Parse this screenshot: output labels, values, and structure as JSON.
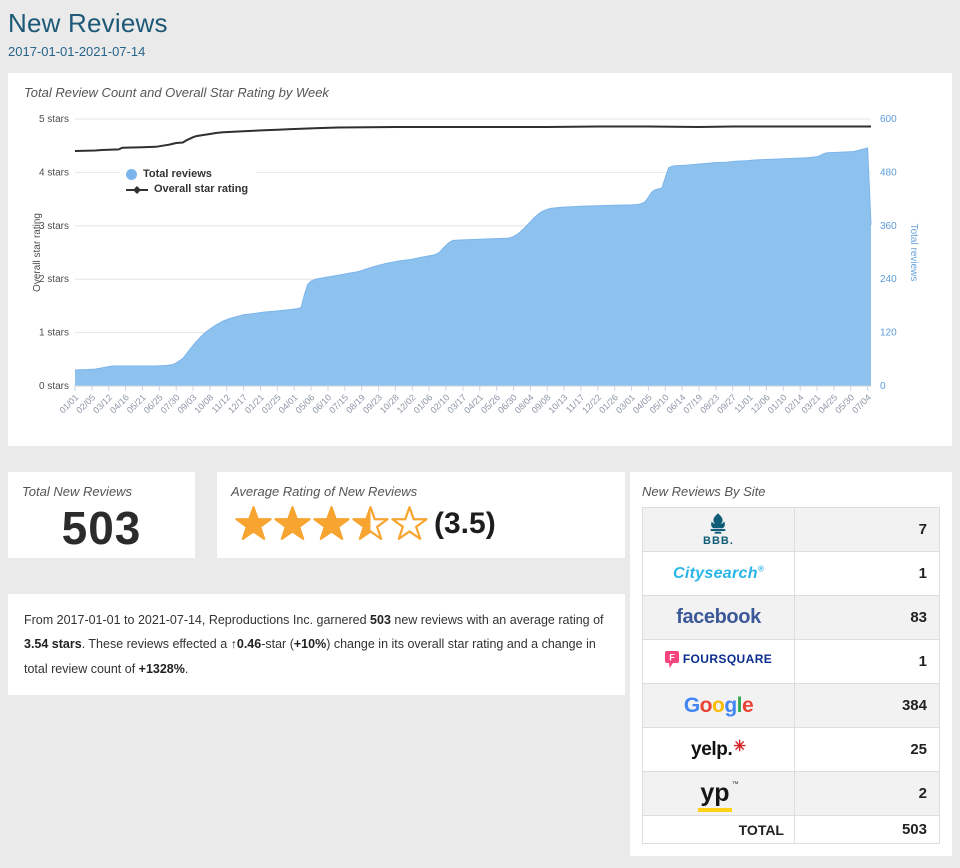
{
  "page": {
    "title": "New Reviews",
    "date_range": "2017-01-01-2021-07-14"
  },
  "chart": {
    "title": "Total Review Count and Overall Star Rating by Week",
    "legend": [
      {
        "label": "Total reviews",
        "marker": "circle",
        "color": "#7cb5ec"
      },
      {
        "label": "Overall star rating",
        "marker": "line-diamond",
        "color": "#333333"
      }
    ]
  },
  "chart_data": {
    "type": "area+line combo",
    "title": "Total Review Count and Overall Star Rating by Week",
    "x_axis": {
      "unit": "week",
      "weeks_total": 236,
      "tick_labels": [
        "01/01",
        "02/05",
        "03/12",
        "04/16",
        "05/21",
        "06/25",
        "07/30",
        "09/03",
        "10/08",
        "11/12",
        "12/17",
        "01/21",
        "02/25",
        "04/01",
        "05/06",
        "06/10",
        "07/15",
        "08/19",
        "09/23",
        "10/28",
        "12/02",
        "01/06",
        "02/10",
        "03/17",
        "04/21",
        "05/26",
        "06/30",
        "08/04",
        "09/08",
        "10/13",
        "11/17",
        "12/22",
        "01/26",
        "03/01",
        "04/05",
        "05/10",
        "06/14",
        "07/19",
        "08/23",
        "09/27",
        "11/01",
        "12/06",
        "01/10",
        "02/14",
        "03/21",
        "04/25",
        "05/30",
        "07/04"
      ],
      "tick_every_weeks": 5
    },
    "y_left": {
      "title": "Overall star rating",
      "range": [
        0,
        5
      ],
      "tick_labels": [
        "0 stars",
        "1 stars",
        "2 stars",
        "3 stars",
        "4 stars",
        "5 stars"
      ]
    },
    "y_right": {
      "title": "Total reviews",
      "range": [
        0,
        600
      ],
      "tick_labels": [
        "0",
        "120",
        "240",
        "360",
        "480",
        "600"
      ]
    },
    "grid": "horizontal",
    "legend_position": "inside-top-left",
    "series": [
      {
        "name": "Total reviews",
        "type": "area",
        "axis": "right",
        "line_color": "#7cb5ec",
        "fill_color": "#8dc1ee",
        "points": [
          [
            0,
            36
          ],
          [
            4,
            37
          ],
          [
            6,
            38
          ],
          [
            9,
            42
          ],
          [
            11,
            45
          ],
          [
            24,
            45
          ],
          [
            27,
            46
          ],
          [
            29,
            48
          ],
          [
            30,
            52
          ],
          [
            32,
            62
          ],
          [
            34,
            82
          ],
          [
            36,
            100
          ],
          [
            38,
            116
          ],
          [
            40,
            128
          ],
          [
            42,
            138
          ],
          [
            44,
            146
          ],
          [
            46,
            152
          ],
          [
            48,
            156
          ],
          [
            50,
            160
          ],
          [
            53,
            163
          ],
          [
            56,
            166
          ],
          [
            59,
            168
          ],
          [
            62,
            170
          ],
          [
            64,
            172
          ],
          [
            66,
            174
          ],
          [
            67,
            176
          ],
          [
            68,
            205
          ],
          [
            69,
            228
          ],
          [
            70,
            236
          ],
          [
            71,
            239
          ],
          [
            72,
            241
          ],
          [
            75,
            245
          ],
          [
            78,
            249
          ],
          [
            81,
            253
          ],
          [
            84,
            257
          ],
          [
            86,
            262
          ],
          [
            88,
            267
          ],
          [
            90,
            271
          ],
          [
            92,
            275
          ],
          [
            94,
            278
          ],
          [
            96,
            281
          ],
          [
            98,
            283
          ],
          [
            100,
            285
          ],
          [
            102,
            288
          ],
          [
            104,
            291
          ],
          [
            106,
            294
          ],
          [
            107,
            296
          ],
          [
            108,
            300
          ],
          [
            109,
            308
          ],
          [
            110,
            316
          ],
          [
            111,
            323
          ],
          [
            112,
            327
          ],
          [
            114,
            328
          ],
          [
            117,
            329
          ],
          [
            120,
            330
          ],
          [
            124,
            331
          ],
          [
            128,
            332
          ],
          [
            129,
            333
          ],
          [
            130,
            336
          ],
          [
            131,
            340
          ],
          [
            132,
            346
          ],
          [
            133,
            353
          ],
          [
            134,
            361
          ],
          [
            135,
            369
          ],
          [
            136,
            377
          ],
          [
            137,
            384
          ],
          [
            138,
            390
          ],
          [
            139,
            394
          ],
          [
            140,
            397
          ],
          [
            141,
            399
          ],
          [
            142,
            400
          ],
          [
            145,
            402
          ],
          [
            150,
            404
          ],
          [
            155,
            405
          ],
          [
            160,
            406
          ],
          [
            165,
            407
          ],
          [
            167,
            408
          ],
          [
            168,
            410
          ],
          [
            169,
            414
          ],
          [
            170,
            424
          ],
          [
            171,
            436
          ],
          [
            172,
            441
          ],
          [
            173,
            443
          ],
          [
            174,
            445
          ],
          [
            175,
            468
          ],
          [
            176,
            490
          ],
          [
            177,
            494
          ],
          [
            178,
            495
          ],
          [
            181,
            496
          ],
          [
            184,
            498
          ],
          [
            187,
            500
          ],
          [
            190,
            502
          ],
          [
            193,
            503
          ],
          [
            196,
            505
          ],
          [
            199,
            506
          ],
          [
            202,
            508
          ],
          [
            205,
            509
          ],
          [
            208,
            510
          ],
          [
            211,
            511
          ],
          [
            214,
            512
          ],
          [
            217,
            513
          ],
          [
            220,
            515
          ],
          [
            221,
            518
          ],
          [
            222,
            522
          ],
          [
            223,
            524
          ],
          [
            226,
            525
          ],
          [
            229,
            526
          ],
          [
            231,
            527
          ],
          [
            232,
            529
          ],
          [
            233,
            531
          ],
          [
            234,
            533
          ],
          [
            235,
            535
          ],
          [
            236,
            362
          ]
        ]
      },
      {
        "name": "Overall star rating",
        "type": "line",
        "axis": "left",
        "line_color": "#2f2f2f",
        "points": [
          [
            0,
            4.4
          ],
          [
            6,
            4.41
          ],
          [
            8,
            4.42
          ],
          [
            13,
            4.43
          ],
          [
            14,
            4.46
          ],
          [
            20,
            4.47
          ],
          [
            24,
            4.48
          ],
          [
            26,
            4.5
          ],
          [
            28,
            4.52
          ],
          [
            30,
            4.55
          ],
          [
            32,
            4.56
          ],
          [
            33,
            4.6
          ],
          [
            34,
            4.63
          ],
          [
            35,
            4.66
          ],
          [
            36,
            4.68
          ],
          [
            38,
            4.7
          ],
          [
            40,
            4.72
          ],
          [
            42,
            4.74
          ],
          [
            44,
            4.75
          ],
          [
            47,
            4.76
          ],
          [
            50,
            4.77
          ],
          [
            53,
            4.78
          ],
          [
            56,
            4.79
          ],
          [
            60,
            4.8
          ],
          [
            64,
            4.81
          ],
          [
            68,
            4.82
          ],
          [
            72,
            4.83
          ],
          [
            78,
            4.84
          ],
          [
            95,
            4.85
          ],
          [
            125,
            4.85
          ],
          [
            140,
            4.85
          ],
          [
            155,
            4.86
          ],
          [
            170,
            4.86
          ],
          [
            185,
            4.85
          ],
          [
            195,
            4.86
          ],
          [
            220,
            4.86
          ],
          [
            236,
            4.86
          ]
        ]
      }
    ]
  },
  "stats": {
    "total_label": "Total New Reviews",
    "total_value": "503",
    "rating_label": "Average Rating of New Reviews",
    "rating_value": 3.5,
    "rating_display": "(3.5)",
    "star_color": "#f7a431"
  },
  "summary": {
    "segments": [
      {
        "t": "From 2017-01-01 to 2021-07-14, Reproductions Inc. garnered ",
        "b": false
      },
      {
        "t": "503",
        "b": true
      },
      {
        "t": " new reviews with an average rating of ",
        "b": false
      },
      {
        "t": "3.54 stars",
        "b": true
      },
      {
        "t": ". These reviews effected a ↑",
        "b": false
      },
      {
        "t": "0.46",
        "b": true
      },
      {
        "t": "-star (",
        "b": false
      },
      {
        "t": "+10%",
        "b": true
      },
      {
        "t": ") change in its overall star rating and a change in total review count of ",
        "b": false
      },
      {
        "t": "+1328%",
        "b": true
      },
      {
        "t": ".",
        "b": false
      }
    ]
  },
  "sites": {
    "title": "New Reviews By Site",
    "rows": [
      {
        "site": "bbb",
        "logo_text": "BBB.",
        "count": "7"
      },
      {
        "site": "citysearch",
        "logo_text": "Citysearch",
        "reg_mark": "®",
        "count": "1"
      },
      {
        "site": "facebook",
        "logo_text": "facebook",
        "count": "83"
      },
      {
        "site": "foursquare",
        "logo_text": "FOURSQUARE",
        "count": "1"
      },
      {
        "site": "google",
        "letters": [
          [
            "G",
            "#4285F4"
          ],
          [
            "o",
            "#EA4335"
          ],
          [
            "o",
            "#FBBC05"
          ],
          [
            "g",
            "#4285F4"
          ],
          [
            "l",
            "#34A853"
          ],
          [
            "e",
            "#EA4335"
          ]
        ],
        "count": "384"
      },
      {
        "site": "yelp",
        "logo_text": "yelp.",
        "burst": "✳",
        "count": "25"
      },
      {
        "site": "yp",
        "logo_text": "yp",
        "tm_mark": "™",
        "count": "2"
      }
    ],
    "total_label": "TOTAL",
    "total_value": "503"
  }
}
